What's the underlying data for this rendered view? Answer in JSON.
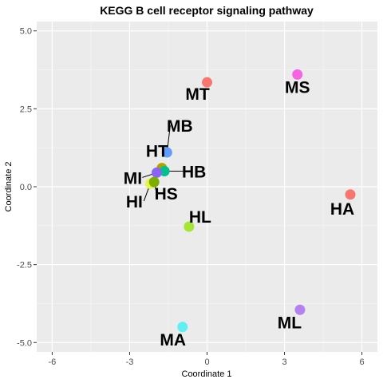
{
  "chart_data": {
    "type": "scatter",
    "title": "KEGG B cell receptor signaling pathway",
    "xlabel": "Coordinate 1",
    "ylabel": "Coordinate 2",
    "xlim": [
      -6.6,
      6.6
    ],
    "ylim": [
      -5.3,
      5.3
    ],
    "xticks": [
      -6,
      -3,
      0,
      3,
      6
    ],
    "yticks": [
      -5.0,
      -2.5,
      0.0,
      2.5,
      5.0
    ],
    "xtick_labels": [
      "-6",
      "-3",
      "0",
      "3",
      "6"
    ],
    "ytick_labels": [
      "-5.0",
      "-2.5",
      "0.0",
      "2.5",
      "5.0"
    ],
    "grid": true,
    "background": "#ebebeb",
    "points": [
      {
        "label": "MT",
        "x": 0.0,
        "y": 3.35,
        "color": "#f8766d"
      },
      {
        "label": "MS",
        "x": 3.5,
        "y": 3.6,
        "color": "#f564e3"
      },
      {
        "label": "HA",
        "x": 5.55,
        "y": -0.25,
        "color": "#f8766d"
      },
      {
        "label": "MB",
        "x": -1.55,
        "y": 1.1,
        "color": "#619cff"
      },
      {
        "label": "HT",
        "x": -1.75,
        "y": 0.6,
        "color": "#b79f00"
      },
      {
        "label": "HB",
        "x": -1.65,
        "y": 0.5,
        "color": "#00c08b"
      },
      {
        "label": "MI",
        "x": -1.95,
        "y": 0.45,
        "color": "#8b64f5"
      },
      {
        "label": "HI",
        "x": -2.2,
        "y": 0.1,
        "color": "#e6f54a"
      },
      {
        "label": "HS",
        "x": -2.05,
        "y": 0.15,
        "color": "#7cae00"
      },
      {
        "label": "HL",
        "x": -0.7,
        "y": -1.28,
        "color": "#a3e635"
      },
      {
        "label": "ML",
        "x": 3.6,
        "y": -3.95,
        "color": "#b580f0"
      },
      {
        "label": "MA",
        "x": -0.95,
        "y": -4.5,
        "color": "#5ef0f5"
      }
    ]
  }
}
